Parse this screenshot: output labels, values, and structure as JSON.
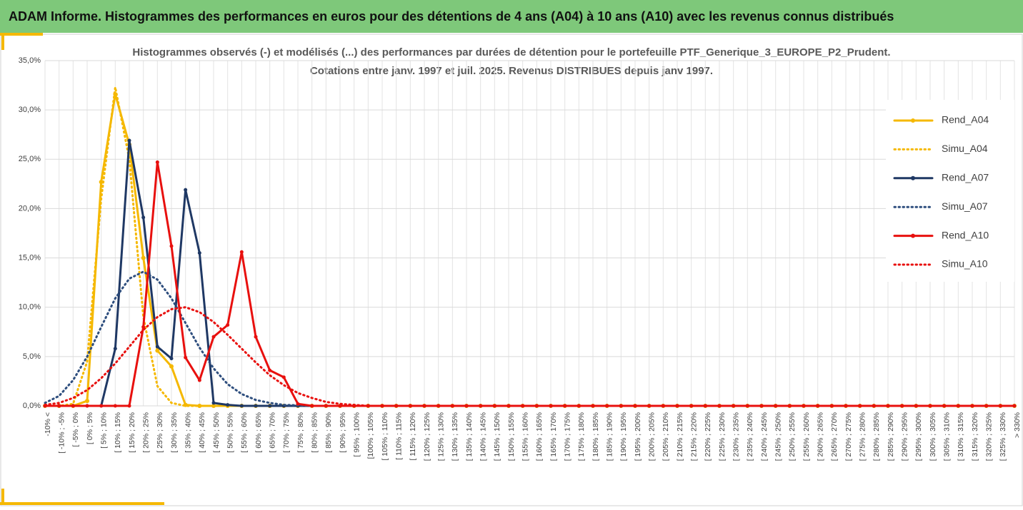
{
  "header": {
    "title": "ADAM Informe. Histogrammes des performances en euros pour des détentions de 4 ans (A04) à 10 ans (A10) avec les revenus connus distribués"
  },
  "chart_data": {
    "type": "line",
    "title": [
      "Histogrammes observés (-) et modélisés (...) des performances par durées de détention pour le portefeuille PTF_Generique_3_EUROPE_P2_Prudent.",
      "Cotations entre janv. 1997 et juil. 2025. Revenus DISTRIBUES depuis janv 1997."
    ],
    "categories": [
      "-10% <",
      "[ -10% ; -5%",
      "[ -5% ; 0%",
      "[ 0% ; 5%",
      "[ 5% ; 10%",
      "[ 10% ; 15%",
      "[ 15% ; 20%",
      "[ 20% ; 25%",
      "[ 25% ; 30%",
      "[ 30% ; 35%",
      "[ 35% ; 40%",
      "[ 40% ; 45%",
      "[ 45% ; 50%",
      "[ 50% ; 55%",
      "[ 55% ; 60%",
      "[ 60% ; 65%",
      "[ 65% ; 70%",
      "[ 70% ; 75%",
      "[ 75% ; 80%",
      "[ 80% ; 85%",
      "[ 85% ; 90%",
      "[ 90% ; 95%",
      "[ 95% ; 100%",
      "[100% ; 105%",
      "[ 105% ; 110%",
      "[ 110% ; 115%",
      "[ 115% ; 120%",
      "[ 120% ; 125%",
      "[ 125% ; 130%",
      "[ 130% ; 135%",
      "[ 135% ; 140%",
      "[ 140% ; 145%",
      "[ 145% ; 150%",
      "[ 150% ; 155%",
      "[ 155% ; 160%",
      "[ 160% ; 165%",
      "[ 165% ; 170%",
      "[ 170% ; 175%",
      "[ 175% ; 180%",
      "[ 180% ; 185%",
      "[ 185% ; 190%",
      "[ 190% ; 195%",
      "[ 195% ; 200%",
      "[ 200% ; 205%",
      "[ 205% ; 210%",
      "[ 210% ; 215%",
      "[ 215% ; 220%",
      "[ 220% ; 225%",
      "[ 225% ; 230%",
      "[ 230% ; 235%",
      "[ 235% ; 240%",
      "[ 240% ; 245%",
      "[ 245% ; 250%",
      "[ 250% ; 255%",
      "[ 255% ; 260%",
      "[ 260% ; 265%",
      "[ 265% ; 270%",
      "[ 270% ; 275%",
      "[ 275% ; 280%",
      "[ 280% ; 285%",
      "[ 285% ; 290%",
      "[ 290% ; 295%",
      "[ 295% ; 300%",
      "[ 300% ; 305%",
      "[ 305% ; 310%",
      "[ 310% ; 315%",
      "[ 315% ; 320%",
      "[ 320% ; 325%",
      "[ 325% ; 330%",
      "> 330%"
    ],
    "series": [
      {
        "name": "Rend_A04",
        "color": "#f5b800",
        "style": "solid",
        "markers": true,
        "values": [
          0,
          0,
          0,
          0.5,
          22.7,
          31.6,
          26.5,
          15,
          5.6,
          4.0,
          0.1,
          0,
          0,
          0,
          0,
          0,
          0,
          0,
          0,
          0,
          0,
          0,
          0,
          0,
          0,
          0,
          0,
          0,
          0,
          0,
          0,
          0,
          0,
          0,
          0,
          0,
          0,
          0,
          0,
          0,
          0,
          0,
          0,
          0,
          0,
          0,
          0,
          0,
          0,
          0,
          0,
          0,
          0,
          0,
          0,
          0,
          0,
          0,
          0,
          0,
          0,
          0,
          0,
          0,
          0,
          0,
          0,
          0,
          0,
          0
        ]
      },
      {
        "name": "Simu_A04",
        "color": "#f5b800",
        "style": "dotted",
        "markers": false,
        "values": [
          0,
          0,
          0.2,
          4.5,
          21,
          32.3,
          25,
          9,
          2,
          0.3,
          0,
          0,
          0,
          0,
          0,
          0,
          0,
          0,
          0,
          0,
          0,
          0,
          0,
          0,
          0,
          0,
          0,
          0,
          0,
          0,
          0,
          0,
          0,
          0,
          0,
          0,
          0,
          0,
          0,
          0,
          0,
          0,
          0,
          0,
          0,
          0,
          0,
          0,
          0,
          0,
          0,
          0,
          0,
          0,
          0,
          0,
          0,
          0,
          0,
          0,
          0,
          0,
          0,
          0,
          0,
          0,
          0,
          0,
          0,
          0
        ]
      },
      {
        "name": "Rend_A07",
        "color": "#1f3864",
        "style": "solid",
        "markers": true,
        "values": [
          0,
          0,
          0,
          0,
          0,
          5.8,
          26.9,
          19.1,
          6.0,
          4.8,
          21.9,
          15.5,
          0.3,
          0.1,
          0,
          0,
          0,
          0,
          0,
          0,
          0,
          0,
          0,
          0,
          0,
          0,
          0,
          0,
          0,
          0,
          0,
          0,
          0,
          0,
          0,
          0,
          0,
          0,
          0,
          0,
          0,
          0,
          0,
          0,
          0,
          0,
          0,
          0,
          0,
          0,
          0,
          0,
          0,
          0,
          0,
          0,
          0,
          0,
          0,
          0,
          0,
          0,
          0,
          0,
          0,
          0,
          0,
          0,
          0,
          0
        ]
      },
      {
        "name": "Simu_A07",
        "color": "#2e4e7e",
        "style": "dotted",
        "markers": false,
        "values": [
          0.3,
          1.0,
          2.6,
          5.0,
          8.0,
          10.9,
          12.9,
          13.6,
          12.8,
          10.9,
          8.4,
          5.9,
          3.8,
          2.2,
          1.2,
          0.6,
          0.3,
          0.1,
          0.05,
          0,
          0,
          0,
          0,
          0,
          0,
          0,
          0,
          0,
          0,
          0,
          0,
          0,
          0,
          0,
          0,
          0,
          0,
          0,
          0,
          0,
          0,
          0,
          0,
          0,
          0,
          0,
          0,
          0,
          0,
          0,
          0,
          0,
          0,
          0,
          0,
          0,
          0,
          0,
          0,
          0,
          0,
          0,
          0,
          0,
          0,
          0,
          0,
          0,
          0,
          0
        ]
      },
      {
        "name": "Rend_A10",
        "color": "#e8100e",
        "style": "solid",
        "markers": true,
        "values": [
          0,
          0,
          0,
          0,
          0,
          0,
          0,
          8.0,
          24.7,
          16.2,
          4.9,
          2.6,
          7.0,
          8.2,
          15.6,
          7.0,
          3.6,
          2.9,
          0.2,
          0,
          0,
          0,
          0,
          0,
          0,
          0,
          0,
          0,
          0,
          0,
          0,
          0,
          0,
          0,
          0,
          0,
          0,
          0,
          0,
          0,
          0,
          0,
          0,
          0,
          0,
          0,
          0,
          0,
          0,
          0,
          0,
          0,
          0,
          0,
          0,
          0,
          0,
          0,
          0,
          0,
          0,
          0,
          0,
          0,
          0,
          0,
          0,
          0,
          0,
          0
        ]
      },
      {
        "name": "Simu_A10",
        "color": "#e8100e",
        "style": "dotted",
        "markers": false,
        "values": [
          0.1,
          0.3,
          0.8,
          1.6,
          2.8,
          4.3,
          6.0,
          7.7,
          9.0,
          9.8,
          10.0,
          9.5,
          8.5,
          7.2,
          5.8,
          4.4,
          3.1,
          2.1,
          1.3,
          0.8,
          0.4,
          0.2,
          0.1,
          0,
          0,
          0,
          0,
          0,
          0,
          0,
          0,
          0,
          0,
          0,
          0,
          0,
          0,
          0,
          0,
          0,
          0,
          0,
          0,
          0,
          0,
          0,
          0,
          0,
          0,
          0,
          0,
          0,
          0,
          0,
          0,
          0,
          0,
          0,
          0,
          0,
          0,
          0,
          0,
          0,
          0,
          0,
          0,
          0,
          0,
          0
        ]
      }
    ],
    "ylim": [
      0,
      35
    ],
    "yticks": [
      {
        "value": 0,
        "label": "0,0%"
      },
      {
        "value": 5,
        "label": "5,0%"
      },
      {
        "value": 10,
        "label": "10,0%"
      },
      {
        "value": 15,
        "label": "15,0%"
      },
      {
        "value": 20,
        "label": "20,0%"
      },
      {
        "value": 25,
        "label": "25,0%"
      },
      {
        "value": 30,
        "label": "30,0%"
      },
      {
        "value": 35,
        "label": "35,0%"
      }
    ],
    "grid": true,
    "legend": "right"
  }
}
